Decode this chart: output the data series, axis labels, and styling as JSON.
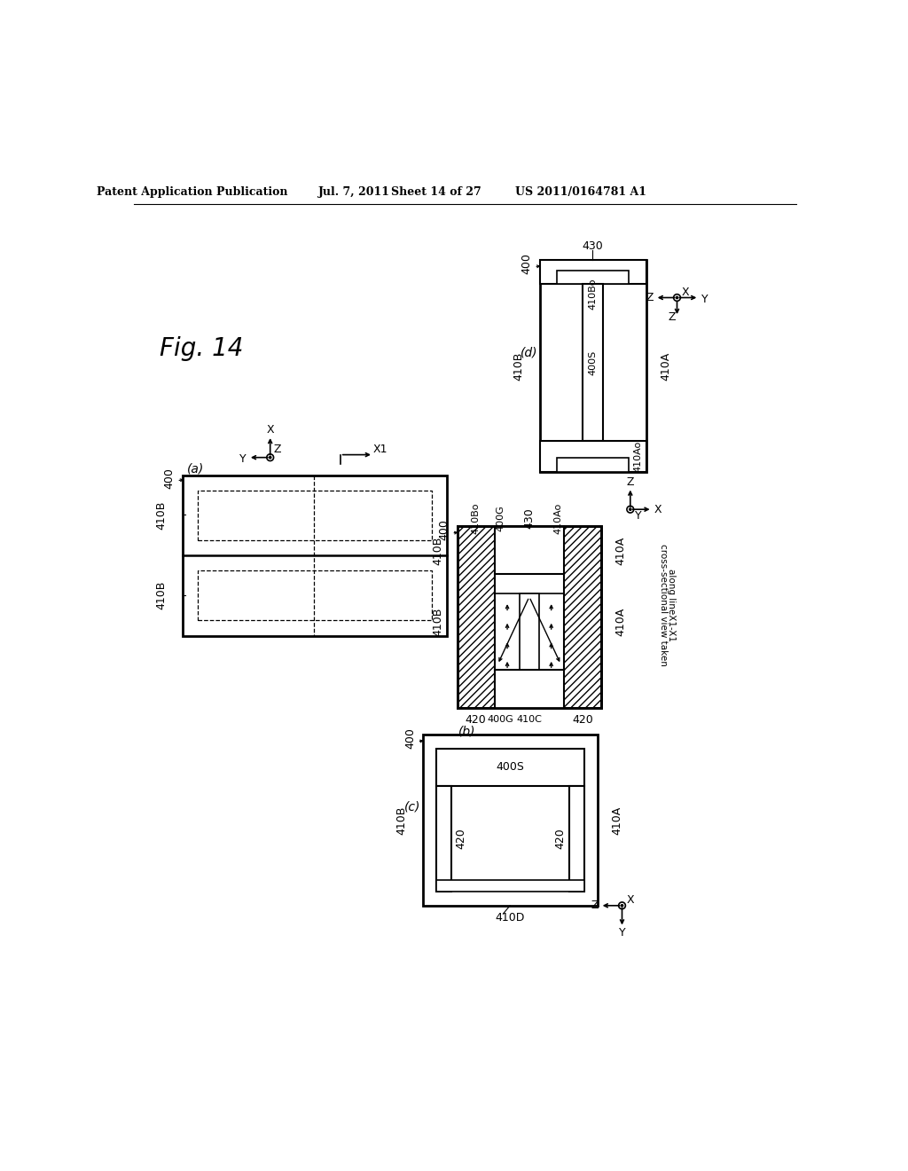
{
  "header_left": "Patent Application Publication",
  "header_center": "Jul. 7, 2011",
  "header_sheet": "Sheet 14 of 27",
  "header_right": "US 2011/0164781 A1",
  "fig_label": "Fig. 14",
  "bg_color": "#ffffff",
  "text_color": "#000000"
}
